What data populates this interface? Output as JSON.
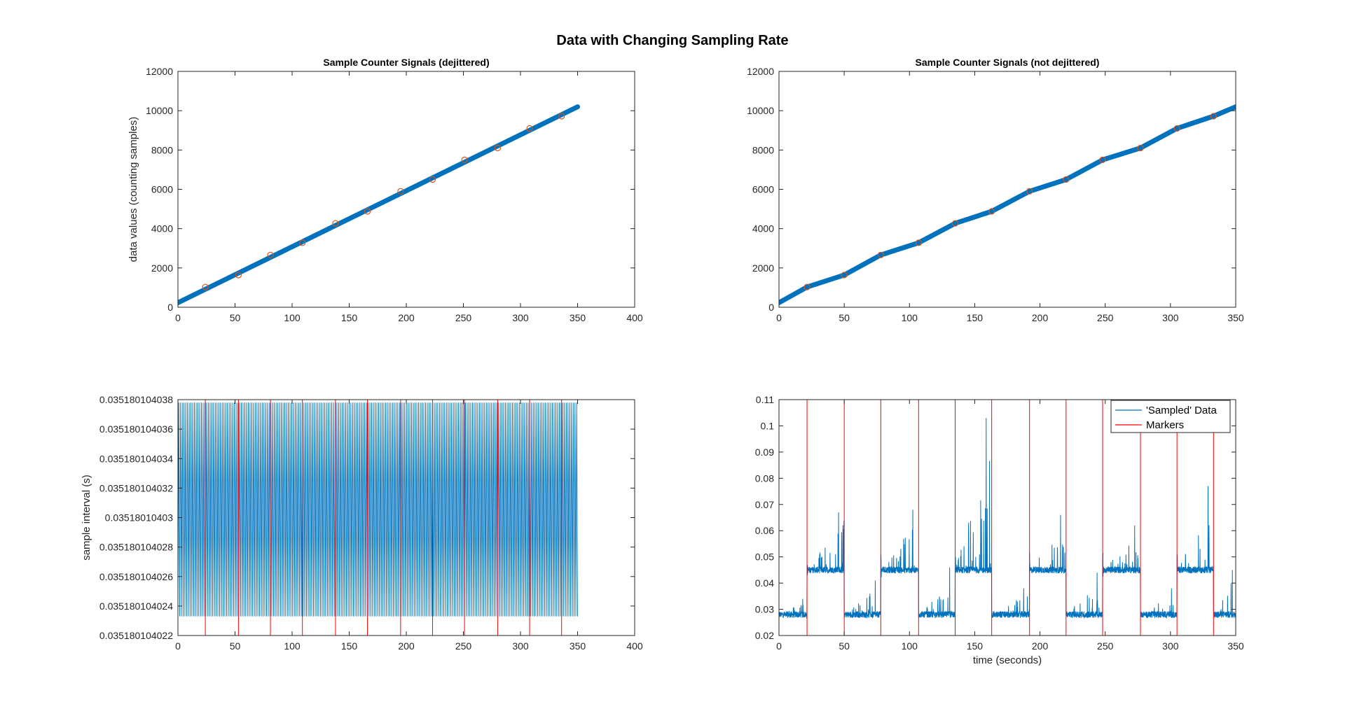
{
  "figure_title": "Data with Changing Sampling Rate",
  "colors": {
    "series_blue": "#0072BD",
    "marker_red": "#D95319",
    "axis": "#262626"
  },
  "chart_data": [
    {
      "id": "ax1",
      "type": "scatter",
      "title": "Sample Counter Signals (dejittered)",
      "xlabel": "",
      "ylabel": "data values (counting samples)",
      "xlim": [
        0,
        400
      ],
      "ylim": [
        0,
        12000
      ],
      "xticks": [
        0,
        50,
        100,
        150,
        200,
        250,
        300,
        350,
        400
      ],
      "yticks": [
        0,
        2000,
        4000,
        6000,
        8000,
        10000,
        12000
      ],
      "ytick_labels": [
        "0",
        "2000",
        "4000",
        "6000",
        "8000",
        "10000",
        "12000"
      ],
      "series": [
        {
          "kind": "thick-line",
          "color": "#0072BD",
          "x": [
            0,
            350
          ],
          "y": [
            230,
            10200
          ]
        }
      ],
      "markers": {
        "color": "#D95319",
        "x": [
          24,
          53,
          81,
          109,
          138,
          166,
          195,
          223,
          251,
          280,
          308,
          336
        ],
        "y": [
          1030,
          1640,
          2660,
          3280,
          4270,
          4880,
          5900,
          6500,
          7500,
          8100,
          9100,
          9720
        ]
      }
    },
    {
      "id": "ax2",
      "type": "scatter",
      "title": "Sample Counter Signals (not dejittered)",
      "xlabel": "",
      "ylabel": "",
      "xlim": [
        0,
        350
      ],
      "ylim": [
        0,
        12000
      ],
      "xticks": [
        0,
        50,
        100,
        150,
        200,
        250,
        300,
        350
      ],
      "yticks": [
        0,
        2000,
        4000,
        6000,
        8000,
        10000,
        12000
      ],
      "ytick_labels": [
        "0",
        "2000",
        "4000",
        "6000",
        "8000",
        "10000",
        "12000"
      ],
      "series": [
        {
          "kind": "thick-line",
          "color": "#0072BD",
          "x": [
            0,
            21.5,
            50,
            78,
            107,
            135,
            163,
            192,
            220,
            248,
            277,
            305,
            333,
            350
          ],
          "y": [
            230,
            1030,
            1640,
            2660,
            3280,
            4270,
            4880,
            5900,
            6500,
            7500,
            8100,
            9100,
            9720,
            10200
          ]
        }
      ],
      "markers": {
        "color": "#D95319",
        "x": [
          21.5,
          50,
          78,
          107,
          135,
          163,
          192,
          220,
          248,
          277,
          305,
          333
        ],
        "y": [
          1030,
          1640,
          2660,
          3280,
          4270,
          4880,
          5900,
          6500,
          7500,
          8100,
          9100,
          9720
        ]
      }
    },
    {
      "id": "ax3",
      "type": "line",
      "title": "",
      "xlabel": "",
      "ylabel": "sample interval (s)",
      "xlim": [
        0,
        400
      ],
      "ylim": [
        0.035180104022,
        0.035180104038
      ],
      "xticks": [
        0,
        50,
        100,
        150,
        200,
        250,
        300,
        350,
        400
      ],
      "yticks": [
        0.035180104022,
        0.035180104024,
        0.035180104026,
        0.035180104028,
        0.03518010403,
        0.035180104032,
        0.035180104034,
        0.035180104036,
        0.035180104038
      ],
      "ytick_labels": [
        "0.035180104022",
        "0.035180104024",
        "0.035180104026",
        "0.035180104028",
        "0.03518010403",
        "0.035180104032",
        "0.035180104034",
        "0.035180104036",
        "0.035180104038"
      ],
      "series": [
        {
          "kind": "oscillation",
          "color": "#0072BD",
          "x_start": 0,
          "x_end": 350,
          "y_low": 0.0351801040233,
          "y_high": 0.0351801040378,
          "cycles": 230
        }
      ],
      "marker_lines": {
        "color": "#FF0000",
        "x": [
          24,
          53,
          81,
          109,
          138,
          166,
          195,
          223,
          251,
          280,
          308,
          336
        ]
      }
    },
    {
      "id": "ax4",
      "type": "line",
      "title": "",
      "xlabel": "time (seconds)",
      "ylabel": "",
      "xlim": [
        0,
        350
      ],
      "ylim": [
        0.02,
        0.11
      ],
      "xticks": [
        0,
        50,
        100,
        150,
        200,
        250,
        300,
        350
      ],
      "yticks": [
        0.02,
        0.03,
        0.04,
        0.05,
        0.06,
        0.07,
        0.08,
        0.09,
        0.1,
        0.11
      ],
      "ytick_labels": [
        "0.02",
        "0.03",
        "0.04",
        "0.05",
        "0.06",
        "0.07",
        "0.08",
        "0.09",
        "0.1",
        "0.11"
      ],
      "series": [
        {
          "name": "'Sampled' Data",
          "kind": "noisy-steps",
          "color": "#0072BD",
          "segments": [
            {
              "x0": 0,
              "x1": 21.5,
              "level": 0.028,
              "peak": 0.034
            },
            {
              "x0": 21.5,
              "x1": 50,
              "level": 0.045,
              "peak": 0.067
            },
            {
              "x0": 50,
              "x1": 78,
              "level": 0.028,
              "peak": 0.041
            },
            {
              "x0": 78,
              "x1": 107,
              "level": 0.045,
              "peak": 0.068
            },
            {
              "x0": 107,
              "x1": 135,
              "level": 0.028,
              "peak": 0.046
            },
            {
              "x0": 135,
              "x1": 163,
              "level": 0.045,
              "peak": 0.103
            },
            {
              "x0": 163,
              "x1": 192,
              "level": 0.028,
              "peak": 0.038
            },
            {
              "x0": 192,
              "x1": 220,
              "level": 0.045,
              "peak": 0.066
            },
            {
              "x0": 220,
              "x1": 248,
              "level": 0.028,
              "peak": 0.044
            },
            {
              "x0": 248,
              "x1": 277,
              "level": 0.045,
              "peak": 0.062
            },
            {
              "x0": 277,
              "x1": 305,
              "level": 0.028,
              "peak": 0.038
            },
            {
              "x0": 305,
              "x1": 333,
              "level": 0.045,
              "peak": 0.077
            },
            {
              "x0": 333,
              "x1": 350,
              "level": 0.028,
              "peak": 0.045
            }
          ]
        },
        {
          "name": "Markers",
          "kind": "vertical-lines",
          "color": "#FF0000",
          "x": [
            21.5,
            50,
            78,
            107,
            135,
            163,
            192,
            220,
            248,
            277,
            305,
            333
          ]
        }
      ],
      "legend": {
        "position": "top-right",
        "entries": [
          "'Sampled' Data",
          "Markers"
        ]
      }
    }
  ]
}
